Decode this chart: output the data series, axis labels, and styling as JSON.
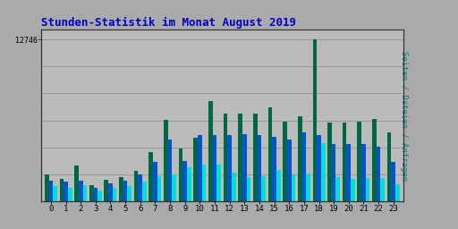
{
  "title": "Stunden-Statistik im Monat August 2019",
  "title_color": "#0000CC",
  "title_fontsize": 9,
  "ylabel": "Seiten / Dateien / Anfragen",
  "ylabel_color": "#008080",
  "ylabel_fontsize": 6.5,
  "background_color": "#AAAAAA",
  "plot_bg_color": "#BBBBBB",
  "grid_color": "#999999",
  "ytick_label": "12746",
  "ytick_value": 12746,
  "hours": [
    0,
    1,
    2,
    3,
    4,
    5,
    6,
    7,
    8,
    9,
    10,
    11,
    12,
    13,
    14,
    15,
    16,
    17,
    18,
    19,
    20,
    21,
    22,
    23
  ],
  "seiten": [
    2100,
    1800,
    2800,
    1300,
    1700,
    1900,
    2400,
    3900,
    6400,
    4200,
    5000,
    7900,
    6900,
    6900,
    6900,
    7400,
    6300,
    6700,
    12746,
    6200,
    6200,
    6300,
    6500,
    5400
  ],
  "dateien": [
    1650,
    1550,
    1650,
    1100,
    1450,
    1650,
    2150,
    3100,
    4900,
    3200,
    5200,
    5200,
    5200,
    5300,
    5200,
    5100,
    4900,
    5400,
    5200,
    4500,
    4500,
    4500,
    4300,
    3100
  ],
  "anfragen": [
    1200,
    1050,
    1300,
    850,
    1100,
    1200,
    1600,
    2000,
    2100,
    2700,
    2900,
    2900,
    2300,
    1900,
    2000,
    2500,
    2100,
    2200,
    4600,
    1900,
    1800,
    1850,
    1850,
    1350
  ],
  "color_seiten": "#006644",
  "color_dateien": "#0055CC",
  "color_anfragen": "#00DDDD",
  "bar_width": 0.28,
  "ylim": [
    0,
    13500
  ],
  "yticks": [
    0,
    2125,
    4250,
    6375,
    8500,
    10625,
    12746
  ],
  "border_color": "#333333"
}
